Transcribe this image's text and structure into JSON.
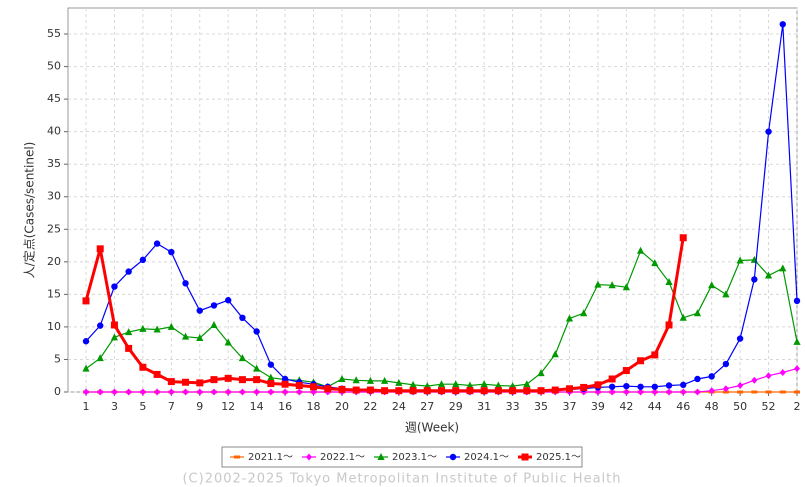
{
  "chart_data": {
    "type": "line",
    "xlabel": "週(Week)",
    "ylabel": "人/定点(Cases/sentinel)",
    "footer": "(C)2002-2025 Tokyo Metropolitan Institute of Public Health",
    "categories": [
      "1",
      null,
      "3",
      null,
      "5",
      null,
      "7",
      null,
      "9",
      null,
      "12",
      null,
      "14",
      null,
      "16",
      null,
      "18",
      null,
      "20",
      null,
      "22",
      null,
      "24",
      null,
      "27",
      null,
      "29",
      null,
      "31",
      null,
      "33",
      null,
      "35",
      null,
      "37",
      null,
      "39",
      null,
      "42",
      null,
      "44",
      null,
      "46",
      null,
      "48",
      null,
      "50",
      null,
      "52",
      null,
      "2"
    ],
    "ylim": [
      0,
      59
    ],
    "yticks": [
      0,
      5,
      10,
      15,
      20,
      25,
      30,
      35,
      40,
      45,
      50,
      55
    ],
    "grid": true,
    "legend": "bottom",
    "series": [
      {
        "name": "2021.1～",
        "color": "#ff6600",
        "marker": "dash",
        "values": [
          0,
          0,
          0,
          0,
          0,
          0,
          0,
          0,
          0,
          0,
          0,
          0,
          0,
          0,
          0,
          0,
          0,
          0,
          0,
          0,
          0,
          0,
          0,
          0,
          0,
          0,
          0,
          0,
          0,
          0,
          0,
          0,
          0,
          0,
          0,
          0,
          0,
          0,
          0,
          0,
          0,
          0,
          0,
          0,
          0,
          0,
          0,
          0,
          0,
          0,
          0
        ]
      },
      {
        "name": "2022.1～",
        "color": "#ff00ff",
        "marker": "diamond",
        "values": [
          0,
          0,
          0,
          0,
          0,
          0,
          0,
          0,
          0,
          0,
          0,
          0,
          0,
          0,
          0,
          0,
          0,
          0,
          0,
          0,
          0,
          0,
          0,
          0,
          0,
          0,
          0,
          0,
          0,
          0,
          0,
          0,
          0,
          0,
          0,
          0,
          0,
          0,
          0,
          0,
          0,
          0,
          0,
          0,
          0.2,
          0.5,
          1.0,
          1.8,
          2.5,
          3.0,
          3.6
        ]
      },
      {
        "name": "2023.1～",
        "color": "#009900",
        "marker": "triangle",
        "values": [
          3.6,
          5.2,
          8.4,
          9.2,
          9.7,
          9.6,
          10.0,
          8.5,
          8.3,
          10.3,
          7.6,
          5.2,
          3.6,
          2.2,
          1.9,
          1.8,
          1.5,
          0.8,
          2.0,
          1.8,
          1.7,
          1.7,
          1.4,
          1.1,
          0.9,
          1.2,
          1.2,
          1.0,
          1.2,
          1.0,
          0.9,
          1.2,
          2.9,
          5.8,
          11.3,
          12.1,
          16.5,
          16.4,
          16.1,
          21.7,
          19.8,
          16.9,
          11.4,
          12.1,
          16.4,
          15.0,
          20.2,
          20.3,
          17.9,
          19.0,
          7.7
        ]
      },
      {
        "name": "2024.1～",
        "color": "#0000ff",
        "marker": "circle",
        "values": [
          7.8,
          10.2,
          16.2,
          18.5,
          20.3,
          22.8,
          21.5,
          16.7,
          12.5,
          13.3,
          14.1,
          11.4,
          9.3,
          4.2,
          2.0,
          1.5,
          1.2,
          0.8,
          0.5,
          0.3,
          0.2,
          0.2,
          0.2,
          0.1,
          0.1,
          0.1,
          0.1,
          0.1,
          0.1,
          0.1,
          0.1,
          0.1,
          0.2,
          0.3,
          0.4,
          0.5,
          0.7,
          0.8,
          0.9,
          0.8,
          0.8,
          1.0,
          1.1,
          2.0,
          2.4,
          4.3,
          8.2,
          17.3,
          40,
          56.5,
          14
        ]
      },
      {
        "name": "2025.1～",
        "color": "#ff0000",
        "marker": "square",
        "width": 3,
        "values": [
          14,
          22,
          10.3,
          6.7,
          3.8,
          2.7,
          1.6,
          1.5,
          1.4,
          1.9,
          2.1,
          1.9,
          1.9,
          1.3,
          1.2,
          1.0,
          0.8,
          0.5,
          0.4,
          0.3,
          0.3,
          0.2,
          0.2,
          0.2,
          0.2,
          0.2,
          0.2,
          0.2,
          0.2,
          0.2,
          0.2,
          0.2,
          0.2,
          0.3,
          0.5,
          0.7,
          1.1,
          2.0,
          3.3,
          4.8,
          5.7,
          10.3,
          23.7,
          null,
          null,
          null,
          null,
          null,
          null,
          null,
          null
        ]
      }
    ]
  }
}
